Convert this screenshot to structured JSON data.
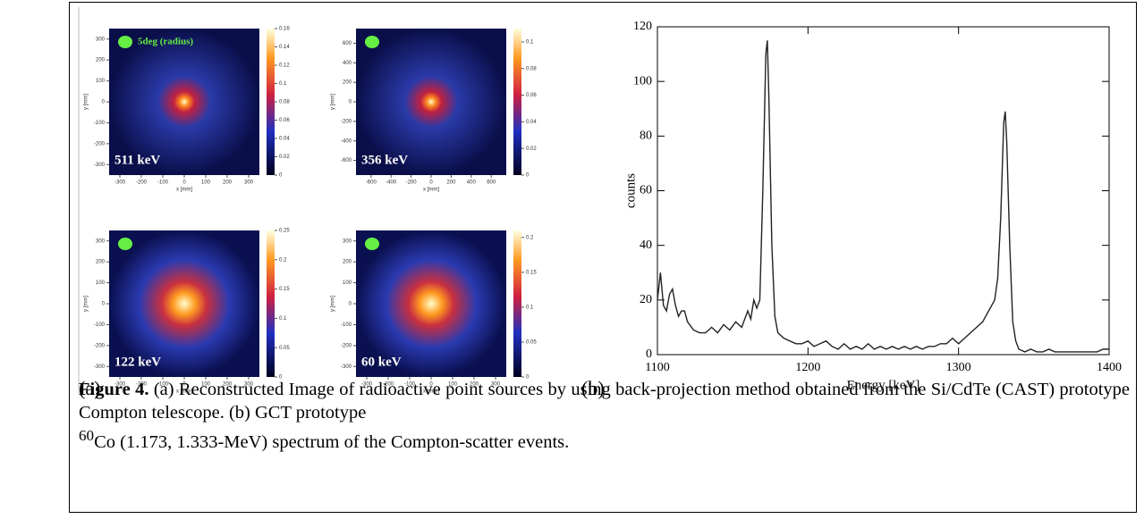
{
  "panel_a": {
    "label": "(a)",
    "legend": "5deg (radius)",
    "images": [
      {
        "energy": "511 keV",
        "xlabel": "x [mm]",
        "ylabel": "y [mm]",
        "xlim": [
          -350,
          350
        ],
        "ylim": [
          -350,
          350
        ],
        "xticks": [
          -300,
          -200,
          -100,
          0,
          100,
          200,
          300
        ],
        "yticks": [
          -300,
          -200,
          -100,
          0,
          100,
          200,
          300
        ],
        "clim": [
          0,
          0.16
        ],
        "cticks": [
          0,
          0.02,
          0.04,
          0.06,
          0.08,
          0.1,
          0.12,
          0.14,
          0.16
        ]
      },
      {
        "energy": "356 keV",
        "xlabel": "x [mm]",
        "ylabel": "y [mm]",
        "xlim": [
          -750,
          750
        ],
        "ylim": [
          -750,
          750
        ],
        "xticks": [
          -600,
          -400,
          -200,
          0,
          200,
          400,
          600
        ],
        "yticks": [
          -600,
          -400,
          -200,
          0,
          200,
          400,
          600
        ],
        "clim": [
          0,
          0.11
        ],
        "cticks": [
          0,
          0.02,
          0.04,
          0.06,
          0.08,
          0.1
        ]
      },
      {
        "energy": "122 keV",
        "xlabel": "x [mm]",
        "ylabel": "y [mm]",
        "xlim": [
          -350,
          350
        ],
        "ylim": [
          -350,
          350
        ],
        "xticks": [
          -300,
          -200,
          -100,
          0,
          100,
          200,
          300
        ],
        "yticks": [
          -300,
          -200,
          -100,
          0,
          100,
          200,
          300
        ],
        "clim": [
          0,
          0.25
        ],
        "cticks": [
          0,
          0.05,
          0.1,
          0.15,
          0.2,
          0.25
        ]
      },
      {
        "energy": "60 keV",
        "xlabel": "x [mm]",
        "ylabel": "y [mm]",
        "xlim": [
          -350,
          350
        ],
        "ylim": [
          -350,
          350
        ],
        "xticks": [
          -300,
          -200,
          -100,
          0,
          100,
          200,
          300
        ],
        "yticks": [
          -300,
          -200,
          -100,
          0,
          100,
          200,
          300
        ],
        "clim": [
          0,
          0.21
        ],
        "cticks": [
          0,
          0.05,
          0.1,
          0.15,
          0.2
        ]
      }
    ]
  },
  "panel_b": {
    "label": "(b)",
    "chart_data": {
      "type": "line",
      "xlabel": "Energy [keV]",
      "ylabel": "counts",
      "xlim": [
        1100,
        1400
      ],
      "ylim": [
        0,
        120
      ],
      "xticks": [
        1100,
        1200,
        1300,
        1400
      ],
      "yticks": [
        0,
        20,
        40,
        60,
        80,
        100,
        120
      ],
      "x": [
        1100,
        1102,
        1104,
        1106,
        1108,
        1110,
        1112,
        1114,
        1116,
        1118,
        1120,
        1124,
        1128,
        1132,
        1136,
        1140,
        1144,
        1148,
        1152,
        1156,
        1160,
        1162,
        1164,
        1166,
        1168,
        1170,
        1172,
        1173,
        1174,
        1176,
        1178,
        1180,
        1184,
        1188,
        1192,
        1196,
        1200,
        1204,
        1208,
        1212,
        1216,
        1220,
        1224,
        1228,
        1232,
        1236,
        1240,
        1244,
        1248,
        1252,
        1256,
        1260,
        1264,
        1268,
        1272,
        1276,
        1280,
        1284,
        1288,
        1292,
        1296,
        1300,
        1304,
        1308,
        1312,
        1316,
        1320,
        1322,
        1324,
        1326,
        1328,
        1330,
        1331,
        1332,
        1334,
        1336,
        1338,
        1340,
        1344,
        1348,
        1352,
        1356,
        1360,
        1364,
        1368,
        1372,
        1376,
        1380,
        1384,
        1388,
        1392,
        1396,
        1400
      ],
      "series": [
        {
          "name": "counts",
          "color": "#222222",
          "values": [
            20,
            30,
            18,
            16,
            22,
            24,
            18,
            14,
            16,
            16,
            12,
            9,
            8,
            8,
            10,
            8,
            11,
            9,
            12,
            10,
            16,
            13,
            20,
            17,
            20,
            60,
            110,
            115,
            95,
            40,
            14,
            8,
            6,
            5,
            4,
            4,
            5,
            3,
            4,
            5,
            3,
            2,
            4,
            2,
            3,
            2,
            4,
            2,
            3,
            2,
            3,
            2,
            3,
            2,
            3,
            2,
            3,
            3,
            4,
            4,
            6,
            4,
            6,
            8,
            10,
            12,
            16,
            18,
            20,
            28,
            50,
            85,
            89,
            78,
            40,
            12,
            5,
            2,
            1,
            2,
            1,
            1,
            2,
            1,
            1,
            1,
            1,
            1,
            1,
            1,
            1,
            2,
            2
          ]
        }
      ]
    }
  },
  "caption": {
    "label": "Figure 4.",
    "text1": " (a) Reconstructed Image of radioactive point sources by using back-projection method obtained from the Si/CdTe (CAST) prototype Compton telescope.  (b) GCT prototype ",
    "sup": "60",
    "text2": "Co (1.173, 1.333-MeV) spectrum of the Compton-scatter events."
  }
}
